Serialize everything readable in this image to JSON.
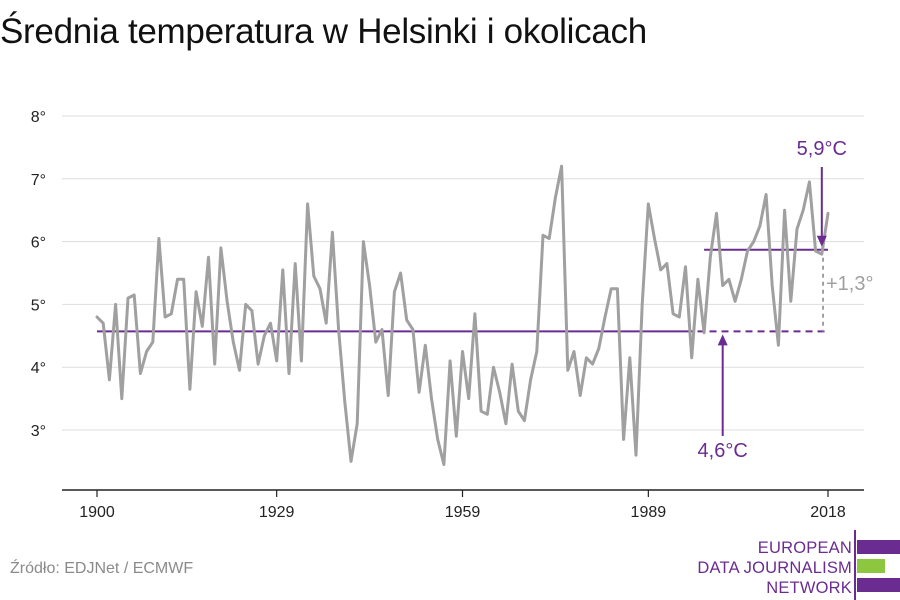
{
  "title": "Średnia temperatura w Helsinki i okolicach",
  "source": "Źródło: EDJNet / ECMWF",
  "logo": {
    "lines": [
      "EUROPEAN",
      "DATA JOURNALISM",
      "NETWORK"
    ],
    "colors": {
      "purple": "#6b2c91",
      "green": "#8dc63f"
    }
  },
  "colors": {
    "series": "#a0a0a0",
    "accent": "#6b2c91",
    "grid": "#dddddd",
    "axis": "#222222",
    "delta": "#a0a0a0"
  },
  "chart_data": {
    "type": "line",
    "title": "Średnia temperatura w Helsinki i okolicach",
    "xlim": [
      1900,
      2018
    ],
    "ylim": [
      2,
      8
    ],
    "x_ticks": [
      1900,
      1929,
      1959,
      1989,
      2018
    ],
    "x_tick_labels": [
      "1900",
      "1929",
      "1959",
      "1989",
      "2018"
    ],
    "y_ticks": [
      3,
      4,
      5,
      6,
      7,
      8
    ],
    "y_tick_labels": [
      "3°",
      "4°",
      "5°",
      "6°",
      "7°",
      "8°"
    ],
    "grid": true,
    "series": [
      {
        "x": [
          1900,
          1901,
          1902,
          1903,
          1904,
          1905,
          1906,
          1907,
          1908,
          1909,
          1910,
          1911,
          1912,
          1913,
          1914,
          1915,
          1916,
          1917,
          1918,
          1919,
          1920,
          1921,
          1922,
          1923,
          1924,
          1925,
          1926,
          1927,
          1928,
          1929,
          1930,
          1931,
          1932,
          1933,
          1934,
          1935,
          1936,
          1937,
          1938,
          1939,
          1940,
          1941,
          1942,
          1943,
          1944,
          1945,
          1946,
          1947,
          1948,
          1949,
          1950,
          1951,
          1952,
          1953,
          1954,
          1955,
          1956,
          1957,
          1958,
          1959,
          1960,
          1961,
          1962,
          1963,
          1964,
          1965,
          1966,
          1967,
          1968,
          1969,
          1970,
          1971,
          1972,
          1973,
          1974,
          1975,
          1976,
          1977,
          1978,
          1979,
          1980,
          1981,
          1982,
          1983,
          1984,
          1985,
          1986,
          1987,
          1988,
          1989,
          1990,
          1991,
          1992,
          1993,
          1994,
          1995,
          1996,
          1997,
          1998,
          1999,
          2000,
          2001,
          2002,
          2003,
          2004,
          2005,
          2006,
          2007,
          2008,
          2009,
          2010,
          2011,
          2012,
          2013,
          2014,
          2015,
          2016,
          2017,
          2018
        ],
        "values": [
          4.8,
          4.7,
          3.8,
          5.0,
          3.5,
          5.1,
          5.15,
          3.9,
          4.25,
          4.4,
          6.05,
          4.8,
          4.85,
          5.4,
          5.4,
          3.65,
          5.2,
          4.65,
          5.75,
          4.05,
          5.9,
          5.05,
          4.4,
          3.95,
          5.0,
          4.9,
          4.05,
          4.5,
          4.7,
          4.1,
          5.55,
          3.9,
          5.65,
          4.1,
          6.6,
          5.45,
          5.25,
          4.7,
          6.15,
          4.6,
          3.45,
          2.5,
          3.1,
          6.0,
          5.3,
          4.4,
          4.6,
          3.55,
          5.2,
          5.5,
          4.75,
          4.6,
          3.6,
          4.35,
          3.5,
          2.85,
          2.45,
          4.1,
          2.9,
          4.25,
          3.5,
          4.85,
          3.3,
          3.25,
          4.0,
          3.6,
          3.1,
          4.05,
          3.3,
          3.15,
          3.8,
          4.25,
          6.1,
          6.05,
          6.7,
          7.2,
          3.95,
          4.25,
          3.55,
          4.15,
          4.05,
          4.3,
          4.8,
          5.25,
          5.25,
          2.85,
          4.15,
          2.6,
          5.0,
          6.6,
          6.05,
          5.55,
          5.65,
          4.85,
          4.8,
          5.6,
          4.15,
          5.4,
          4.55,
          5.75,
          6.45,
          5.3,
          5.4,
          5.05,
          5.4,
          5.85,
          6.0,
          6.25,
          6.75,
          5.3,
          4.35,
          6.5,
          5.05,
          6.2,
          6.5,
          6.95,
          5.85,
          5.8,
          6.45
        ]
      }
    ],
    "reference_lines": [
      {
        "label": "4,6°C",
        "value": 4.57,
        "from": 1900,
        "to": 1995
      },
      {
        "label": "5,9°C",
        "value": 5.87,
        "from": 1998,
        "to": 2018
      }
    ],
    "annotations": [
      {
        "text": "4,6°C",
        "target_year": 2001
      },
      {
        "text": "5,9°C",
        "target_year": 2017
      },
      {
        "text": "+1,3°",
        "note": "difference between the two averages"
      }
    ]
  }
}
